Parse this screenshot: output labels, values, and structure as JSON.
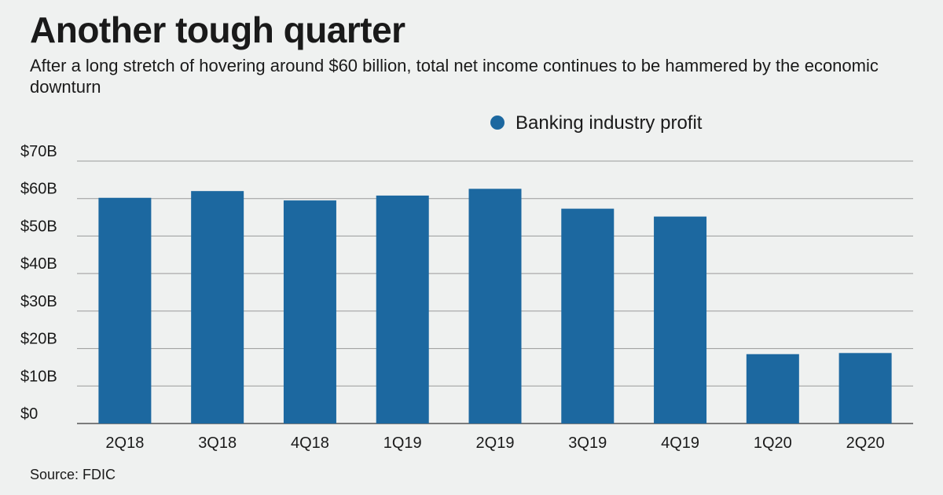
{
  "header": {
    "title": "Another tough quarter",
    "subtitle": "After a long stretch of hovering around $60 billion, total net income continues to be hammered by the economic downturn"
  },
  "footer": {
    "source": "Source: FDIC"
  },
  "colors": {
    "bar": "#1c68a0",
    "grid": "#9a9a9a",
    "background": "#eff1f0"
  },
  "chart_data": {
    "type": "bar",
    "title": "",
    "xlabel": "",
    "ylabel": "",
    "categories": [
      "2Q18",
      "3Q18",
      "4Q18",
      "1Q19",
      "2Q19",
      "3Q19",
      "4Q19",
      "1Q20",
      "2Q20"
    ],
    "series": [
      {
        "name": "Banking industry profit",
        "values": [
          60.2,
          62.0,
          59.5,
          60.8,
          62.6,
          57.3,
          55.2,
          18.5,
          18.8
        ]
      }
    ],
    "ylim": [
      0,
      70
    ],
    "yticks": [
      0,
      10,
      20,
      30,
      40,
      50,
      60,
      70
    ],
    "ytick_labels": [
      "$0",
      "$10B",
      "$20B",
      "$30B",
      "$40B",
      "$50B",
      "$60B",
      "$70B"
    ],
    "grid": true,
    "legend_position": "top-right"
  }
}
